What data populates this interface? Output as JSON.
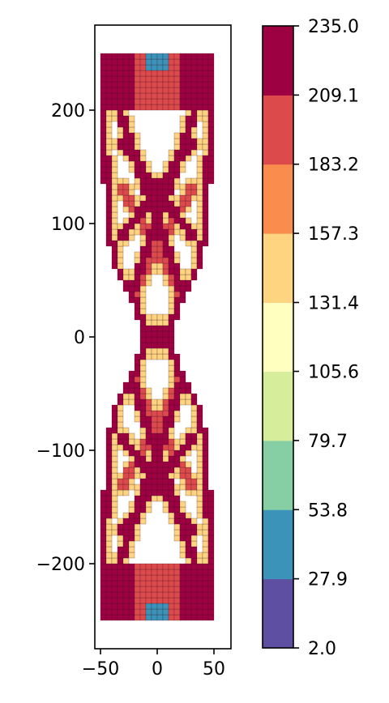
{
  "chart_data": {
    "type": "heatmap",
    "description_visible": "mesh plot of a symmetric lattice-like structure colored by a scalar field",
    "xlim": [
      -55,
      65
    ],
    "ylim": [
      -275,
      275
    ],
    "x_ticks": [
      -50,
      0,
      50
    ],
    "x_tick_labels": [
      "−50",
      "0",
      "50"
    ],
    "y_ticks": [
      -200,
      -100,
      0,
      100,
      200
    ],
    "y_tick_labels": [
      "−200",
      "−100",
      "0",
      "100",
      "200"
    ],
    "grid": false,
    "colormap": "Spectral",
    "colorbar": {
      "placement": "right",
      "boundaries": [
        2.0,
        27.9,
        53.8,
        79.7,
        105.6,
        131.4,
        157.3,
        183.2,
        209.1,
        235.0
      ],
      "labels": [
        "2.0",
        "27.9",
        "53.8",
        "79.7",
        "105.6",
        "131.4",
        "157.3",
        "183.2",
        "209.1",
        "235.0"
      ],
      "colors": [
        "#5e4fa2",
        "#3b93ba",
        "#86cfa5",
        "#d6ee9b",
        "#ffffbf",
        "#fed481",
        "#fa8c4e",
        "#dd4a4c",
        "#9e0142"
      ]
    },
    "mesh": {
      "x_range": [
        -50,
        50
      ],
      "y_range": [
        -250,
        250
      ],
      "cell_size": 5,
      "symmetry": "mirrored about x = 0 and about y = 0",
      "outer_boundary_half_width_at_y": [
        [
          250,
          50
        ],
        [
          200,
          50
        ],
        [
          150,
          48
        ],
        [
          100,
          46
        ],
        [
          60,
          38
        ],
        [
          30,
          22
        ],
        [
          0,
          12
        ]
      ],
      "crossing_members": [
        {
          "from": [
            -40,
            220
          ],
          "to": [
            35,
            0
          ],
          "value": 235
        },
        {
          "from": [
            40,
            220
          ],
          "to": [
            -35,
            0
          ],
          "value": 235
        },
        {
          "from": [
            -30,
            170
          ],
          "to": [
            30,
            90
          ],
          "value": 215
        },
        {
          "from": [
            30,
            170
          ],
          "to": [
            -30,
            90
          ],
          "value": 215
        },
        {
          "from": [
            -30,
            130
          ],
          "to": [
            20,
            40
          ],
          "value": 200
        },
        {
          "from": [
            30,
            130
          ],
          "to": [
            -20,
            40
          ],
          "value": 200
        }
      ]
    }
  }
}
